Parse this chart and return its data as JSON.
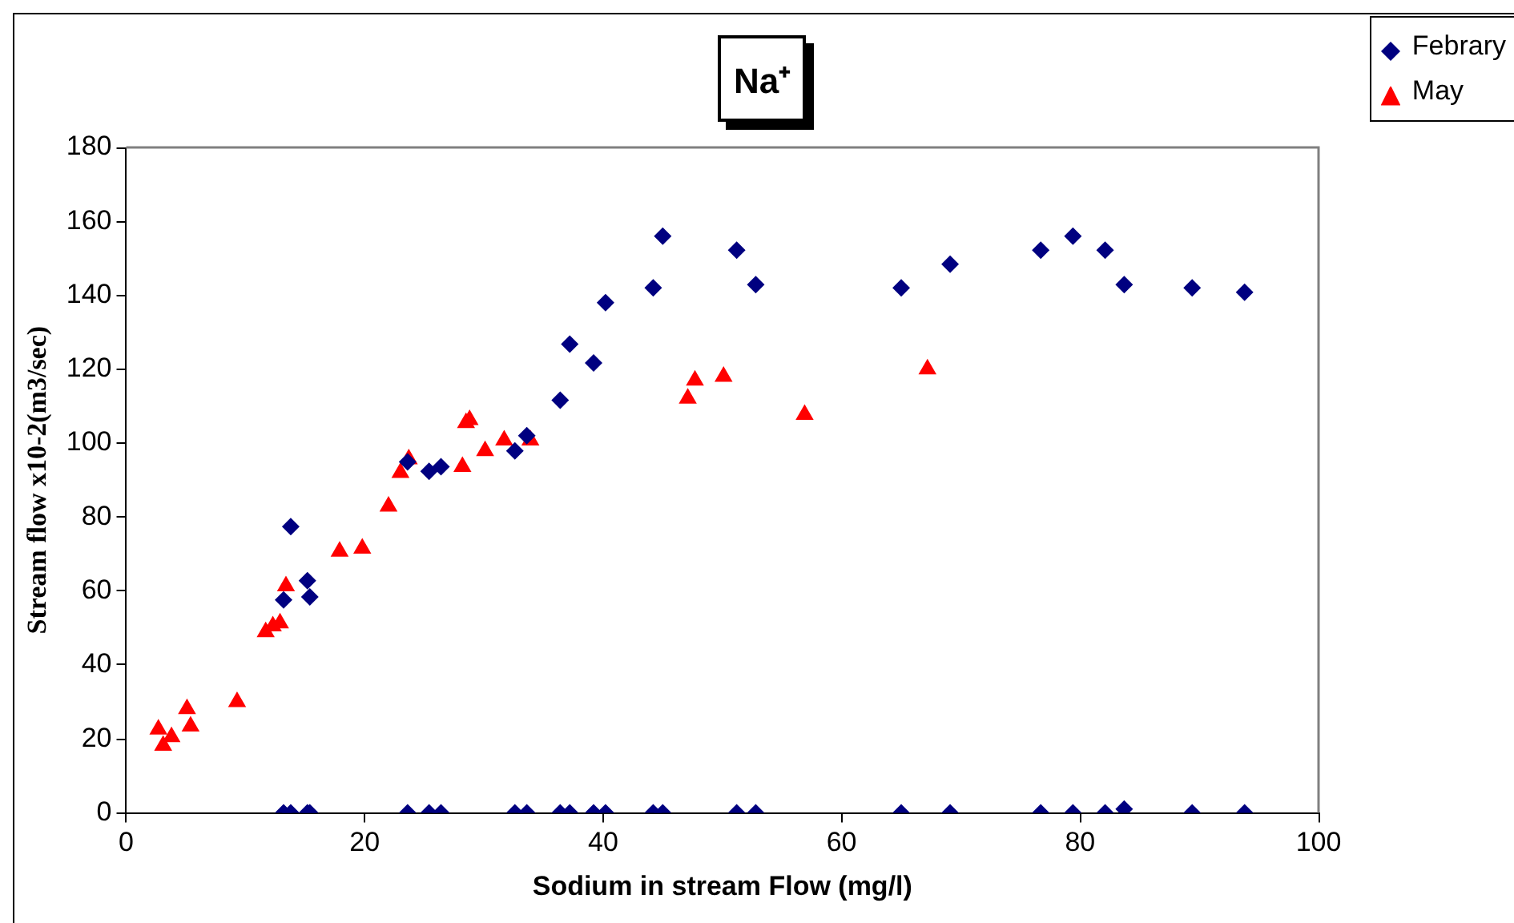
{
  "chart_data": {
    "type": "scatter",
    "title": "Na⁺",
    "xlabel": "Sodium in stream Flow (mg/l)",
    "ylabel": "Stream flow x10-2(m3/sec)",
    "xlim": [
      0,
      100
    ],
    "xticks": [
      0,
      20,
      40,
      60,
      80,
      100
    ],
    "ylim": [
      0,
      180
    ],
    "yticks": [
      0,
      20,
      40,
      60,
      80,
      100,
      120,
      140,
      160,
      180
    ],
    "grid": false,
    "legend": "top right",
    "series": [
      {
        "name": "Febrary",
        "color": "#000080",
        "marker": "diamond",
        "x": [
          13.2,
          13.8,
          15.2,
          15.4,
          23.6,
          25.4,
          26.4,
          32.6,
          33.6,
          36.4,
          37.2,
          39.2,
          40.2,
          44.2,
          45.0,
          51.2,
          52.8,
          65.0,
          69.1,
          76.7,
          79.4,
          82.1,
          83.7,
          89.4,
          93.8,
          13.2,
          13.8,
          15.2,
          15.4,
          23.6,
          25.4,
          26.4,
          32.6,
          33.6,
          36.4,
          37.2,
          39.2,
          40.2,
          44.2,
          45.0,
          51.2,
          52.8,
          65.0,
          69.1,
          76.7,
          79.4,
          82.1,
          83.7,
          89.4,
          93.8
        ],
        "values": [
          57.6,
          77.4,
          62.8,
          58.4,
          94.9,
          92.4,
          93.6,
          97.9,
          102,
          111.6,
          126.8,
          121.7,
          138,
          142,
          156,
          152.2,
          142.9,
          142,
          148.4,
          152.2,
          156,
          152.2,
          142.9,
          142,
          140.8,
          0,
          0,
          0,
          0,
          0,
          0,
          0,
          0,
          0,
          0,
          0,
          0,
          0,
          0,
          0,
          0,
          0,
          0,
          0,
          0,
          0,
          0,
          1,
          0,
          0
        ]
      },
      {
        "name": "May",
        "color": "#ff0000",
        "marker": "triangle",
        "x": [
          2.7,
          3.1,
          3.8,
          5.1,
          5.4,
          9.3,
          11.7,
          12.3,
          12.9,
          13.4,
          17.9,
          19.8,
          22.0,
          23.0,
          23.7,
          28.2,
          28.5,
          28.8,
          30.1,
          31.7,
          33.9,
          47.1,
          47.7,
          50.1,
          56.9,
          67.2
        ],
        "values": [
          22.6,
          18.2,
          20.5,
          28.1,
          23.4,
          30.0,
          48.9,
          50.5,
          51.3,
          61.3,
          70.7,
          71.5,
          82.9,
          92.0,
          95.7,
          93.6,
          105.5,
          106.3,
          97.9,
          100.8,
          100.8,
          112.1,
          117.0,
          118.0,
          107.7,
          120.0
        ]
      }
    ]
  }
}
